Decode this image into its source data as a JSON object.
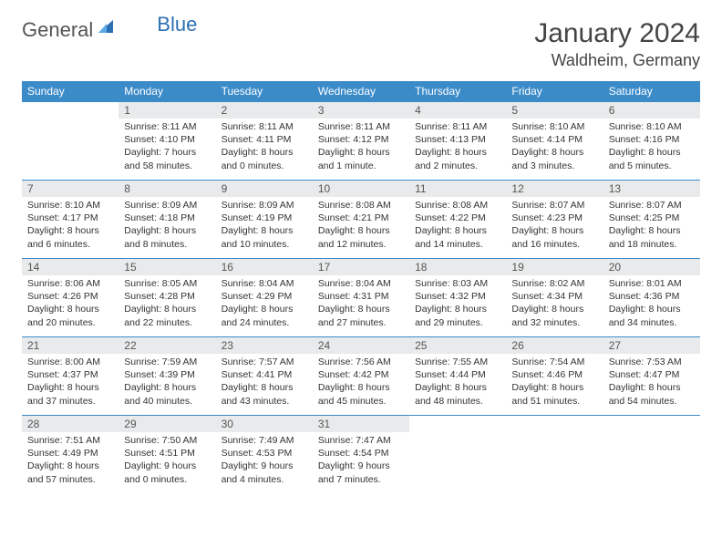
{
  "brand": {
    "part1": "General",
    "part2": "Blue"
  },
  "title": "January 2024",
  "location": "Waldheim, Germany",
  "colors": {
    "header_bg": "#3b8bc9",
    "header_fg": "#ffffff",
    "daynum_bg": "#e9eaeb",
    "border": "#3b8bc9",
    "logo_blue": "#2d6fb3"
  },
  "table": {
    "columns": [
      "Sunday",
      "Monday",
      "Tuesday",
      "Wednesday",
      "Thursday",
      "Friday",
      "Saturday"
    ],
    "weeks": [
      [
        null,
        {
          "n": "1",
          "sr": "Sunrise: 8:11 AM",
          "ss": "Sunset: 4:10 PM",
          "d1": "Daylight: 7 hours",
          "d2": "and 58 minutes."
        },
        {
          "n": "2",
          "sr": "Sunrise: 8:11 AM",
          "ss": "Sunset: 4:11 PM",
          "d1": "Daylight: 8 hours",
          "d2": "and 0 minutes."
        },
        {
          "n": "3",
          "sr": "Sunrise: 8:11 AM",
          "ss": "Sunset: 4:12 PM",
          "d1": "Daylight: 8 hours",
          "d2": "and 1 minute."
        },
        {
          "n": "4",
          "sr": "Sunrise: 8:11 AM",
          "ss": "Sunset: 4:13 PM",
          "d1": "Daylight: 8 hours",
          "d2": "and 2 minutes."
        },
        {
          "n": "5",
          "sr": "Sunrise: 8:10 AM",
          "ss": "Sunset: 4:14 PM",
          "d1": "Daylight: 8 hours",
          "d2": "and 3 minutes."
        },
        {
          "n": "6",
          "sr": "Sunrise: 8:10 AM",
          "ss": "Sunset: 4:16 PM",
          "d1": "Daylight: 8 hours",
          "d2": "and 5 minutes."
        }
      ],
      [
        {
          "n": "7",
          "sr": "Sunrise: 8:10 AM",
          "ss": "Sunset: 4:17 PM",
          "d1": "Daylight: 8 hours",
          "d2": "and 6 minutes."
        },
        {
          "n": "8",
          "sr": "Sunrise: 8:09 AM",
          "ss": "Sunset: 4:18 PM",
          "d1": "Daylight: 8 hours",
          "d2": "and 8 minutes."
        },
        {
          "n": "9",
          "sr": "Sunrise: 8:09 AM",
          "ss": "Sunset: 4:19 PM",
          "d1": "Daylight: 8 hours",
          "d2": "and 10 minutes."
        },
        {
          "n": "10",
          "sr": "Sunrise: 8:08 AM",
          "ss": "Sunset: 4:21 PM",
          "d1": "Daylight: 8 hours",
          "d2": "and 12 minutes."
        },
        {
          "n": "11",
          "sr": "Sunrise: 8:08 AM",
          "ss": "Sunset: 4:22 PM",
          "d1": "Daylight: 8 hours",
          "d2": "and 14 minutes."
        },
        {
          "n": "12",
          "sr": "Sunrise: 8:07 AM",
          "ss": "Sunset: 4:23 PM",
          "d1": "Daylight: 8 hours",
          "d2": "and 16 minutes."
        },
        {
          "n": "13",
          "sr": "Sunrise: 8:07 AM",
          "ss": "Sunset: 4:25 PM",
          "d1": "Daylight: 8 hours",
          "d2": "and 18 minutes."
        }
      ],
      [
        {
          "n": "14",
          "sr": "Sunrise: 8:06 AM",
          "ss": "Sunset: 4:26 PM",
          "d1": "Daylight: 8 hours",
          "d2": "and 20 minutes."
        },
        {
          "n": "15",
          "sr": "Sunrise: 8:05 AM",
          "ss": "Sunset: 4:28 PM",
          "d1": "Daylight: 8 hours",
          "d2": "and 22 minutes."
        },
        {
          "n": "16",
          "sr": "Sunrise: 8:04 AM",
          "ss": "Sunset: 4:29 PM",
          "d1": "Daylight: 8 hours",
          "d2": "and 24 minutes."
        },
        {
          "n": "17",
          "sr": "Sunrise: 8:04 AM",
          "ss": "Sunset: 4:31 PM",
          "d1": "Daylight: 8 hours",
          "d2": "and 27 minutes."
        },
        {
          "n": "18",
          "sr": "Sunrise: 8:03 AM",
          "ss": "Sunset: 4:32 PM",
          "d1": "Daylight: 8 hours",
          "d2": "and 29 minutes."
        },
        {
          "n": "19",
          "sr": "Sunrise: 8:02 AM",
          "ss": "Sunset: 4:34 PM",
          "d1": "Daylight: 8 hours",
          "d2": "and 32 minutes."
        },
        {
          "n": "20",
          "sr": "Sunrise: 8:01 AM",
          "ss": "Sunset: 4:36 PM",
          "d1": "Daylight: 8 hours",
          "d2": "and 34 minutes."
        }
      ],
      [
        {
          "n": "21",
          "sr": "Sunrise: 8:00 AM",
          "ss": "Sunset: 4:37 PM",
          "d1": "Daylight: 8 hours",
          "d2": "and 37 minutes."
        },
        {
          "n": "22",
          "sr": "Sunrise: 7:59 AM",
          "ss": "Sunset: 4:39 PM",
          "d1": "Daylight: 8 hours",
          "d2": "and 40 minutes."
        },
        {
          "n": "23",
          "sr": "Sunrise: 7:57 AM",
          "ss": "Sunset: 4:41 PM",
          "d1": "Daylight: 8 hours",
          "d2": "and 43 minutes."
        },
        {
          "n": "24",
          "sr": "Sunrise: 7:56 AM",
          "ss": "Sunset: 4:42 PM",
          "d1": "Daylight: 8 hours",
          "d2": "and 45 minutes."
        },
        {
          "n": "25",
          "sr": "Sunrise: 7:55 AM",
          "ss": "Sunset: 4:44 PM",
          "d1": "Daylight: 8 hours",
          "d2": "and 48 minutes."
        },
        {
          "n": "26",
          "sr": "Sunrise: 7:54 AM",
          "ss": "Sunset: 4:46 PM",
          "d1": "Daylight: 8 hours",
          "d2": "and 51 minutes."
        },
        {
          "n": "27",
          "sr": "Sunrise: 7:53 AM",
          "ss": "Sunset: 4:47 PM",
          "d1": "Daylight: 8 hours",
          "d2": "and 54 minutes."
        }
      ],
      [
        {
          "n": "28",
          "sr": "Sunrise: 7:51 AM",
          "ss": "Sunset: 4:49 PM",
          "d1": "Daylight: 8 hours",
          "d2": "and 57 minutes."
        },
        {
          "n": "29",
          "sr": "Sunrise: 7:50 AM",
          "ss": "Sunset: 4:51 PM",
          "d1": "Daylight: 9 hours",
          "d2": "and 0 minutes."
        },
        {
          "n": "30",
          "sr": "Sunrise: 7:49 AM",
          "ss": "Sunset: 4:53 PM",
          "d1": "Daylight: 9 hours",
          "d2": "and 4 minutes."
        },
        {
          "n": "31",
          "sr": "Sunrise: 7:47 AM",
          "ss": "Sunset: 4:54 PM",
          "d1": "Daylight: 9 hours",
          "d2": "and 7 minutes."
        },
        null,
        null,
        null
      ]
    ]
  }
}
